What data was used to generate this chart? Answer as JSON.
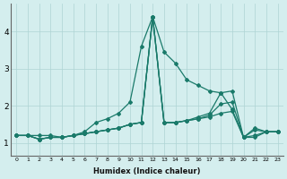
{
  "xlabel": "Humidex (Indice chaleur)",
  "ylabel": "",
  "background_color": "#d4eeee",
  "line_color": "#1a7a6a",
  "grid_color": "#aed4d4",
  "xlim": [
    -0.5,
    23.5
  ],
  "ylim": [
    0.65,
    4.75
  ],
  "xticks": [
    0,
    1,
    2,
    3,
    4,
    5,
    6,
    7,
    8,
    9,
    10,
    11,
    12,
    13,
    14,
    15,
    16,
    17,
    18,
    19,
    20,
    21,
    22,
    23
  ],
  "yticks": [
    1,
    2,
    3,
    4
  ],
  "series": [
    [
      1.2,
      1.2,
      1.2,
      1.2,
      1.15,
      1.2,
      1.3,
      1.55,
      1.65,
      1.8,
      2.1,
      3.6,
      4.4,
      3.45,
      3.15,
      2.7,
      2.55,
      2.4,
      2.35,
      1.9,
      1.15,
      1.4,
      1.3,
      1.3
    ],
    [
      1.2,
      1.2,
      1.1,
      1.15,
      1.15,
      1.2,
      1.25,
      1.3,
      1.35,
      1.4,
      1.5,
      1.55,
      4.4,
      1.55,
      1.55,
      1.6,
      1.7,
      1.8,
      2.35,
      2.4,
      1.15,
      1.35,
      1.3,
      1.3
    ],
    [
      1.2,
      1.2,
      1.1,
      1.15,
      1.15,
      1.2,
      1.25,
      1.3,
      1.35,
      1.4,
      1.5,
      1.55,
      4.4,
      1.55,
      1.55,
      1.6,
      1.65,
      1.75,
      2.05,
      2.1,
      1.15,
      1.2,
      1.3,
      1.3
    ],
    [
      1.2,
      1.2,
      1.1,
      1.15,
      1.15,
      1.2,
      1.25,
      1.3,
      1.35,
      1.4,
      1.5,
      1.55,
      4.4,
      1.55,
      1.55,
      1.6,
      1.65,
      1.7,
      1.8,
      1.85,
      1.15,
      1.15,
      1.3,
      1.3
    ]
  ],
  "x": [
    0,
    1,
    2,
    3,
    4,
    5,
    6,
    7,
    8,
    9,
    10,
    11,
    12,
    13,
    14,
    15,
    16,
    17,
    18,
    19,
    20,
    21,
    22,
    23
  ],
  "figsize": [
    3.2,
    2.0
  ],
  "dpi": 100
}
